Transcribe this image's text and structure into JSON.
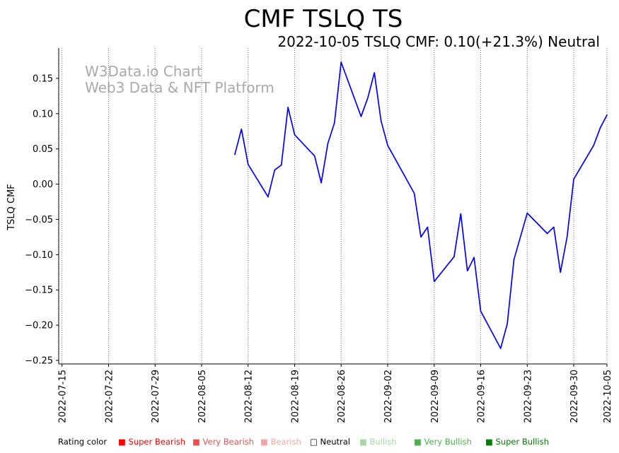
{
  "chart_data": {
    "type": "line",
    "title": "CMF TSLQ TS",
    "subtitle": "2022-10-05 TSLQ CMF: 0.10(+21.3%) Neutral",
    "xlabel": "",
    "ylabel": "TSLQ CMF",
    "ylim": [
      -0.255,
      0.193
    ],
    "yticks": [
      0.15,
      0.1,
      0.05,
      0.0,
      -0.05,
      -0.1,
      -0.15,
      -0.2,
      -0.25
    ],
    "ytick_labels": [
      "0.15",
      "0.10",
      "0.05",
      "0.00",
      "−0.05",
      "−0.10",
      "−0.15",
      "−0.20",
      "−0.25"
    ],
    "xlim_day": [
      -0.5,
      82
    ],
    "xticks": [
      {
        "label": "2022-07-15",
        "day": 0
      },
      {
        "label": "2022-07-22",
        "day": 7
      },
      {
        "label": "2022-07-29",
        "day": 14
      },
      {
        "label": "2022-08-05",
        "day": 21
      },
      {
        "label": "2022-08-12",
        "day": 28
      },
      {
        "label": "2022-08-19",
        "day": 35
      },
      {
        "label": "2022-08-26",
        "day": 42
      },
      {
        "label": "2022-09-02",
        "day": 49
      },
      {
        "label": "2022-09-09",
        "day": 56
      },
      {
        "label": "2022-09-16",
        "day": 63
      },
      {
        "label": "2022-09-23",
        "day": 70
      },
      {
        "label": "2022-09-30",
        "day": 77
      },
      {
        "label": "2022-10-05",
        "day": 82
      }
    ],
    "grid": "vertical dotted",
    "watermark": [
      "W3Data.io Chart",
      "Web3 Data & NFT Platform"
    ],
    "series": [
      {
        "name": "TSLQ CMF",
        "color": "#0000ff",
        "points": [
          {
            "day": 26,
            "value": 0.042
          },
          {
            "day": 27,
            "value": 0.078
          },
          {
            "day": 28,
            "value": 0.028
          },
          {
            "day": 31,
            "value": -0.018
          },
          {
            "day": 32,
            "value": 0.02
          },
          {
            "day": 33,
            "value": 0.027
          },
          {
            "day": 34,
            "value": 0.109
          },
          {
            "day": 35,
            "value": 0.07
          },
          {
            "day": 38,
            "value": 0.04
          },
          {
            "day": 39,
            "value": 0.002
          },
          {
            "day": 40,
            "value": 0.058
          },
          {
            "day": 41,
            "value": 0.087
          },
          {
            "day": 42,
            "value": 0.173
          },
          {
            "day": 45,
            "value": 0.096
          },
          {
            "day": 46,
            "value": 0.122
          },
          {
            "day": 47,
            "value": 0.158
          },
          {
            "day": 48,
            "value": 0.09
          },
          {
            "day": 49,
            "value": 0.055
          },
          {
            "day": 53,
            "value": -0.013
          },
          {
            "day": 54,
            "value": -0.075
          },
          {
            "day": 55,
            "value": -0.061
          },
          {
            "day": 56,
            "value": -0.138
          },
          {
            "day": 59,
            "value": -0.103
          },
          {
            "day": 60,
            "value": -0.042
          },
          {
            "day": 61,
            "value": -0.123
          },
          {
            "day": 62,
            "value": -0.104
          },
          {
            "day": 63,
            "value": -0.18
          },
          {
            "day": 66,
            "value": -0.233
          },
          {
            "day": 67,
            "value": -0.198
          },
          {
            "day": 68,
            "value": -0.107
          },
          {
            "day": 70,
            "value": -0.041
          },
          {
            "day": 73,
            "value": -0.07
          },
          {
            "day": 74,
            "value": -0.061
          },
          {
            "day": 75,
            "value": -0.125
          },
          {
            "day": 76,
            "value": -0.075
          },
          {
            "day": 77,
            "value": 0.007
          },
          {
            "day": 80,
            "value": 0.055
          },
          {
            "day": 81,
            "value": 0.08
          },
          {
            "day": 82,
            "value": 0.098
          }
        ]
      }
    ],
    "legend": {
      "label": "Rating color",
      "placement": "bottom",
      "items": [
        {
          "text": "Super Bearish",
          "color": "#ff0000",
          "marker": "■"
        },
        {
          "text": "Very Bearish",
          "color": "#f24d4d",
          "marker": "■"
        },
        {
          "text": "Bearish",
          "color": "#f2a5a5",
          "marker": "■"
        },
        {
          "text": "Neutral",
          "color": "#000000",
          "marker": "□"
        },
        {
          "text": "Bullish",
          "color": "#a5d8a5",
          "marker": "■"
        },
        {
          "text": "Very Bullish",
          "color": "#4daf4d",
          "marker": "■"
        },
        {
          "text": "Super Bullish",
          "color": "#008000",
          "marker": "■"
        }
      ]
    }
  }
}
